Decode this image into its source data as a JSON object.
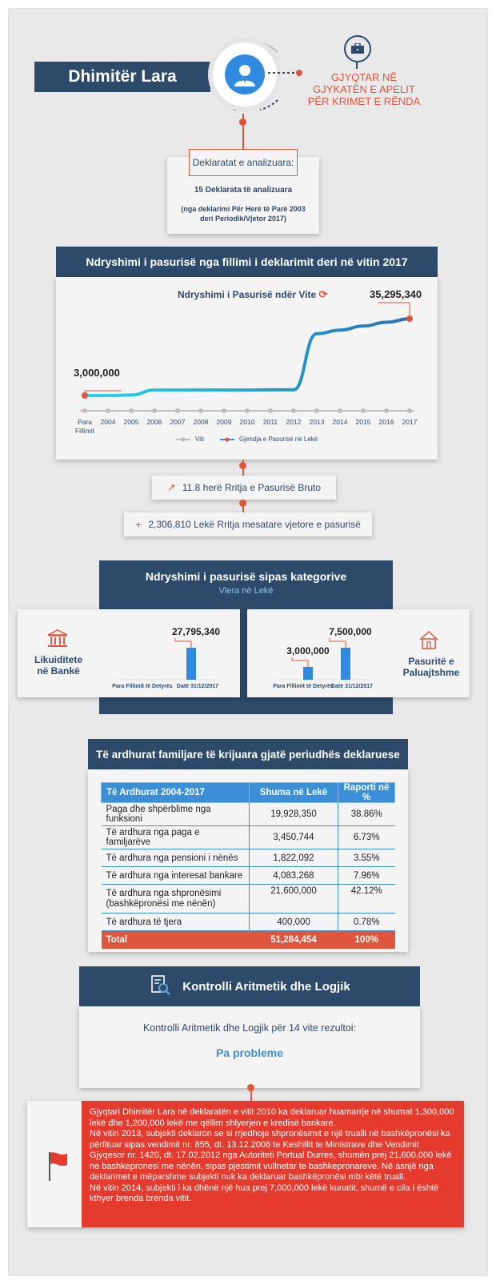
{
  "header": {
    "name": "Dhimitër Lara",
    "position": "GJYQTAR NË GJYKATËN E APELIT PËR KRIMET E RËNDA"
  },
  "declarations": {
    "title": "Deklaratat e analizuara:",
    "count": "15 Deklarata të analizuara",
    "note": "(nga deklarimi Për Herë të Parë 2003 deri Periodik/Vjetor 2017)"
  },
  "wealth_change": {
    "section_title": "Ndryshimi i pasurisë nga fillimi i deklarimit deri në vitin 2017",
    "chart_title": "Ndryshimi i Pasurisë ndër Vite",
    "start_label": "3,000,000",
    "end_label": "35,295,340",
    "legend_year": "Viti",
    "legend_wealth": "Gjendja e Pasurisë në Lekë"
  },
  "chart_data": {
    "type": "line",
    "title": "Ndryshimi i Pasurisë ndër Vite",
    "x": [
      "Para Fillimit",
      "2004",
      "2005",
      "2006",
      "2007",
      "2008",
      "2009",
      "2010",
      "2011",
      "2012",
      "2013",
      "2014",
      "2015",
      "2016",
      "2017"
    ],
    "series": [
      {
        "name": "Gjendja e Pasurisë në Lekë",
        "values": [
          3000000,
          3000000,
          3200000,
          5300000,
          5300000,
          5300000,
          5300000,
          5300000,
          5400000,
          5400000,
          29000000,
          30500000,
          32200000,
          33800000,
          35295340
        ]
      }
    ],
    "labels": {
      "start": "3,000,000",
      "end": "35,295,340"
    }
  },
  "growth": {
    "times": "11.8 herë Rritja e Pasurisë Bruto",
    "annual": "2,306,810 Lekë Rritja mesatare vjetore e pasurisë"
  },
  "categories": {
    "section_title": "Ndryshimi i pasurisë sipas kategorive",
    "subtitle": "Vlera në Lekë",
    "liquidity": {
      "label": "Likuiditete në Bankë",
      "x_before": "Para Fillimit të Detyrës",
      "x_after": "Datë 31/12/2017",
      "value_before": 0,
      "value_after": 27795340,
      "value_label": "27,795,340"
    },
    "property": {
      "label": "Pasuritë e Paluajtshme",
      "x_before": "Para Fillimit të Detyrës",
      "x_after": "Datë 31/12/2017",
      "value_before": 3000000,
      "value_after": 7500000,
      "before_label": "3,000,000",
      "after_label": "7,500,000"
    }
  },
  "income": {
    "section_title": "Të ardhurat familjare të krijuara gjatë periudhës deklaruese",
    "headers": [
      "Të Ardhurat 2004-2017",
      "Shuma në Lekë",
      "Raporti në %"
    ],
    "rows": [
      [
        "Paga dhe shpërblime nga funksioni",
        "19,928,350",
        "38.86%"
      ],
      [
        "Të ardhura nga paga e familjarëve",
        "3,450,744",
        "6.73%"
      ],
      [
        "Të ardhura nga pensioni i nënës",
        "1,822,092",
        "3.55%"
      ],
      [
        "Të ardhura nga interesat bankare",
        "4,083,268",
        "7.96%"
      ],
      [
        "Të ardhura nga shpronësimi (bashkëpronësi me nënën)",
        "21,600,000",
        "42.12%"
      ],
      [
        "Të ardhura të tjera",
        "400,000",
        "0.78%"
      ]
    ],
    "total": [
      "Total",
      "51,284,454",
      "100%"
    ]
  },
  "check": {
    "title": "Kontrolli Aritmetik dhe Logjik",
    "text": "Kontrolli Aritmetik dhe Logjik për 14 vite rezultoi:",
    "result": "Pa probleme"
  },
  "note": {
    "p1": "Gjyqtari Dhimitër Lara në deklaratën e vitit 2010 ka deklaruar huamarrje në shumat 1,300,000 lekë dhe 1,200,000 lekë me qëllim shlyerjen e kredisë bankare.",
    "p2": "Në vitin 2013, subjekti deklaron se si rrjedhoje shpronësimit e një trualli në bashkëpronësi ka përfituar sipas vendimit nr. 855, dt. 13.12.2006 te Keshillit te Ministrave dhe Vendimit Gjyqesor nr. 1420, dt. 17.02.2012 nga Autoriteti Portual Durres, shumën prej 21,600,000 lekë ne bashkepronesi me nënën, sipas pjestimit vullnetar te bashkepronareve. Në asnjë nga deklarimet e mëparshme subjekti nuk ka deklaruar bashkëpronësi mbi këtë truall.",
    "p3": "Në vitin 2014, subjekti i ka dhënë një hua prej 7,000,000 lekë kunatit, shumë e cila i është kthyer brenda brenda vitit."
  },
  "colors": {
    "navy": "#2d4a6b",
    "accent": "#e0553e",
    "blue": "#3a8fd6",
    "cyan": "#26c6e0",
    "alert": "#e53a2e"
  }
}
